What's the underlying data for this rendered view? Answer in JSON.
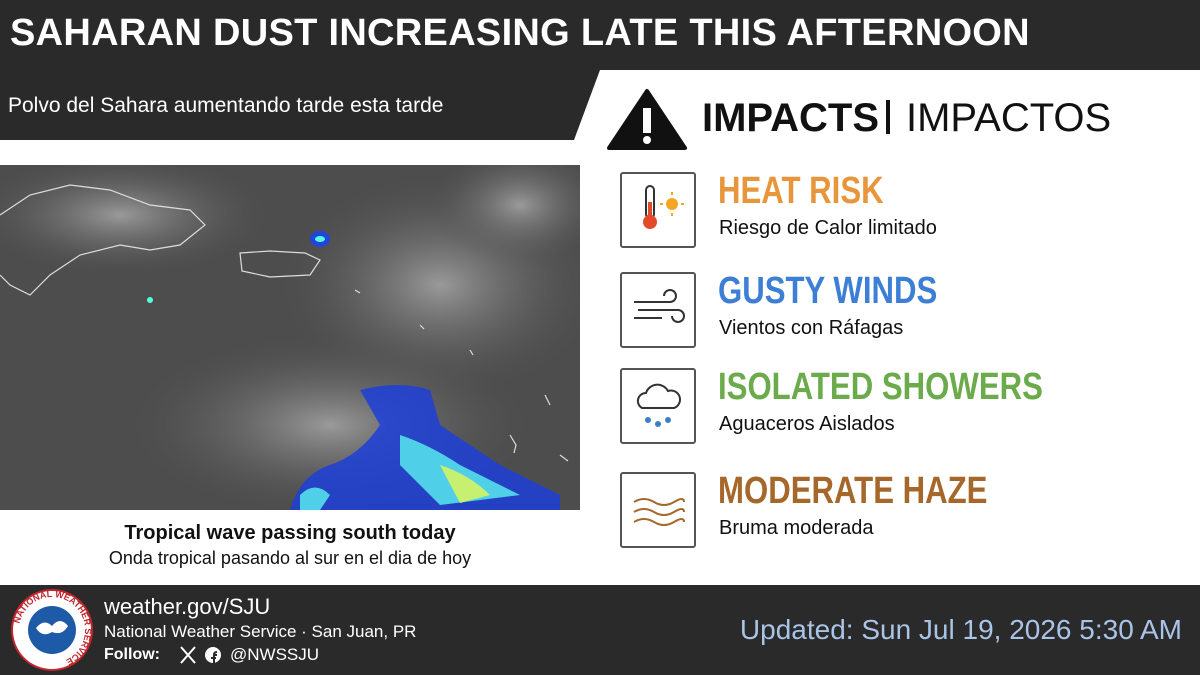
{
  "header": {
    "title": "SAHARAN DUST INCREASING LATE THIS AFTERNOON",
    "subtitle": "Polvo del Sahara aumentando tarde esta tarde"
  },
  "impacts": {
    "heading": "IMPACTS",
    "heading_es": "IMPACTOS",
    "items": [
      {
        "title": "HEAT RISK",
        "subtitle": "Riesgo de Calor limitado",
        "color": "#e8963c"
      },
      {
        "title": "GUSTY WINDS",
        "subtitle": "Vientos con Ráfagas",
        "color": "#3d7fd4"
      },
      {
        "title": "ISOLATED SHOWERS",
        "subtitle": "Aguaceros Aislados",
        "color": "#6cab4c"
      },
      {
        "title": "MODERATE HAZE",
        "subtitle": "Bruma moderada",
        "color": "#a5672a"
      }
    ]
  },
  "map": {
    "caption": "Tropical wave passing south today",
    "caption_es": "Onda tropical pasando al sur en el dia de hoy"
  },
  "footer": {
    "logo_text": "NATIONAL WEATHER SERVICE",
    "url": "weather.gov/SJU",
    "office": "National Weather Service · San Juan, PR",
    "follow": "Follow:",
    "handle": "@NWSSJU",
    "updated": "Updated: Sun Jul 19, 2026 5:30 AM"
  }
}
